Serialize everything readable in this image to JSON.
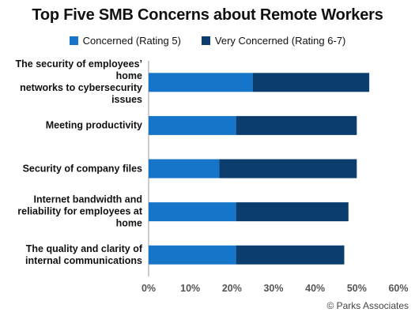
{
  "chart_data": {
    "type": "bar",
    "orientation": "horizontal",
    "stacked": true,
    "title": "Top Five SMB Concerns about Remote Workers",
    "categories": [
      [
        "The security of employees’ home",
        "networks to cybersecurity issues"
      ],
      [
        "Meeting productivity"
      ],
      [
        "Security of company files"
      ],
      [
        "Internet bandwidth and",
        "reliability for employees at home"
      ],
      [
        "The quality and clarity of",
        "internal communications"
      ]
    ],
    "series": [
      {
        "name": "Concerned (Rating 5)",
        "color": "#1675c8",
        "values": [
          25,
          21,
          17,
          21,
          21
        ]
      },
      {
        "name": "Very Concerned (Rating 6-7)",
        "color": "#0b3d6e",
        "values": [
          28,
          29,
          33,
          27,
          26
        ]
      }
    ],
    "xlim": [
      0,
      60
    ],
    "xticks": [
      "0%",
      "10%",
      "20%",
      "30%",
      "40%",
      "50%",
      "60%"
    ],
    "grid": false,
    "legend_position": "top-center"
  },
  "source": "© Parks Associates"
}
